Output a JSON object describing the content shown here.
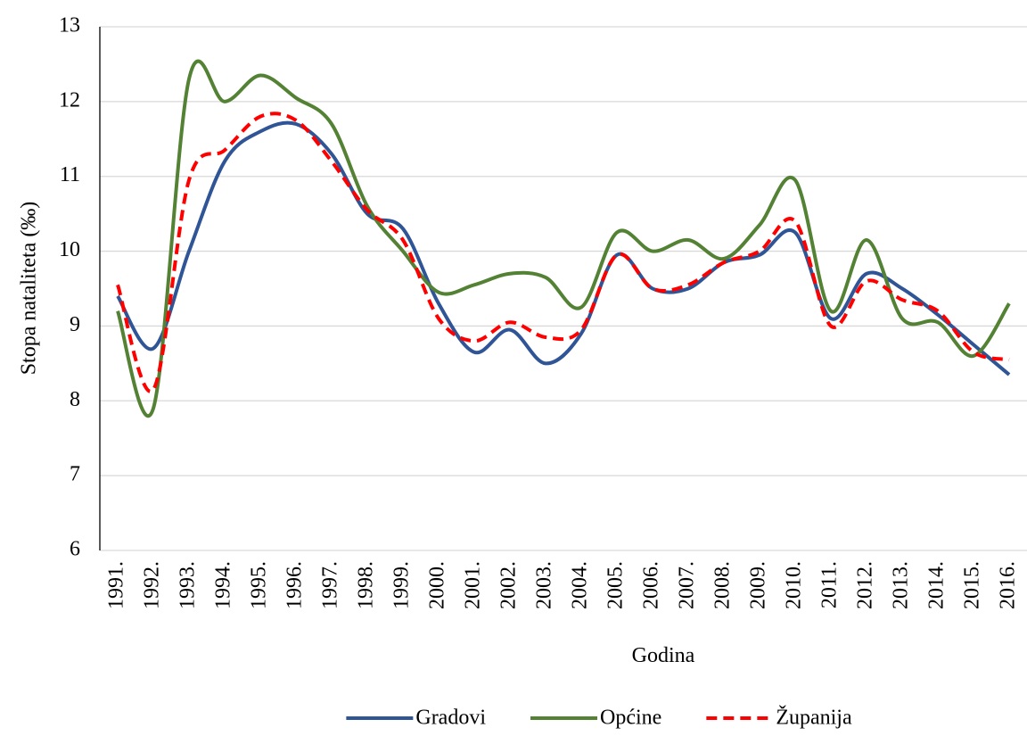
{
  "chart_data": {
    "type": "line",
    "x_label": "Godina",
    "y_label": "Stopa nataliteta (‰)",
    "categories": [
      "1991.",
      "1992.",
      "1993.",
      "1994.",
      "1995.",
      "1996.",
      "1997.",
      "1998.",
      "1999.",
      "2000.",
      "2001.",
      "2002.",
      "2003.",
      "2004.",
      "2005.",
      "2006.",
      "2007.",
      "2008.",
      "2009.",
      "2010.",
      "2011.",
      "2012.",
      "2013.",
      "2014.",
      "2015.",
      "2016."
    ],
    "series": [
      {
        "name": "Gradovi",
        "color": "#2f5597",
        "line_style": "solid",
        "values": [
          9.4,
          8.7,
          10.0,
          11.2,
          11.6,
          11.7,
          11.3,
          10.5,
          10.3,
          9.3,
          8.65,
          8.95,
          8.5,
          8.9,
          9.95,
          9.5,
          9.5,
          9.85,
          9.95,
          10.25,
          9.1,
          9.7,
          9.5,
          9.15,
          8.75,
          8.35
        ]
      },
      {
        "name": "Općine",
        "color": "#548235",
        "line_style": "solid",
        "values": [
          9.2,
          7.9,
          12.3,
          12.0,
          12.35,
          12.05,
          11.7,
          10.6,
          10.0,
          9.45,
          9.55,
          9.7,
          9.65,
          9.25,
          10.25,
          10.0,
          10.15,
          9.9,
          10.35,
          10.95,
          9.2,
          10.15,
          9.1,
          9.05,
          8.6,
          9.3
        ]
      },
      {
        "name": "Županija",
        "color": "#ff0000",
        "line_style": "dashed",
        "values": [
          9.55,
          8.15,
          10.95,
          11.35,
          11.8,
          11.75,
          11.2,
          10.55,
          10.15,
          9.1,
          8.8,
          9.05,
          8.85,
          8.95,
          9.95,
          9.5,
          9.55,
          9.85,
          10.0,
          10.4,
          9.0,
          9.6,
          9.35,
          9.2,
          8.65,
          8.55
        ]
      }
    ],
    "ylim": [
      6,
      13
    ],
    "yticks": [
      6,
      7,
      8,
      9,
      10,
      11,
      12,
      13
    ],
    "grid": true,
    "smooth": true,
    "legend": "bottom"
  }
}
